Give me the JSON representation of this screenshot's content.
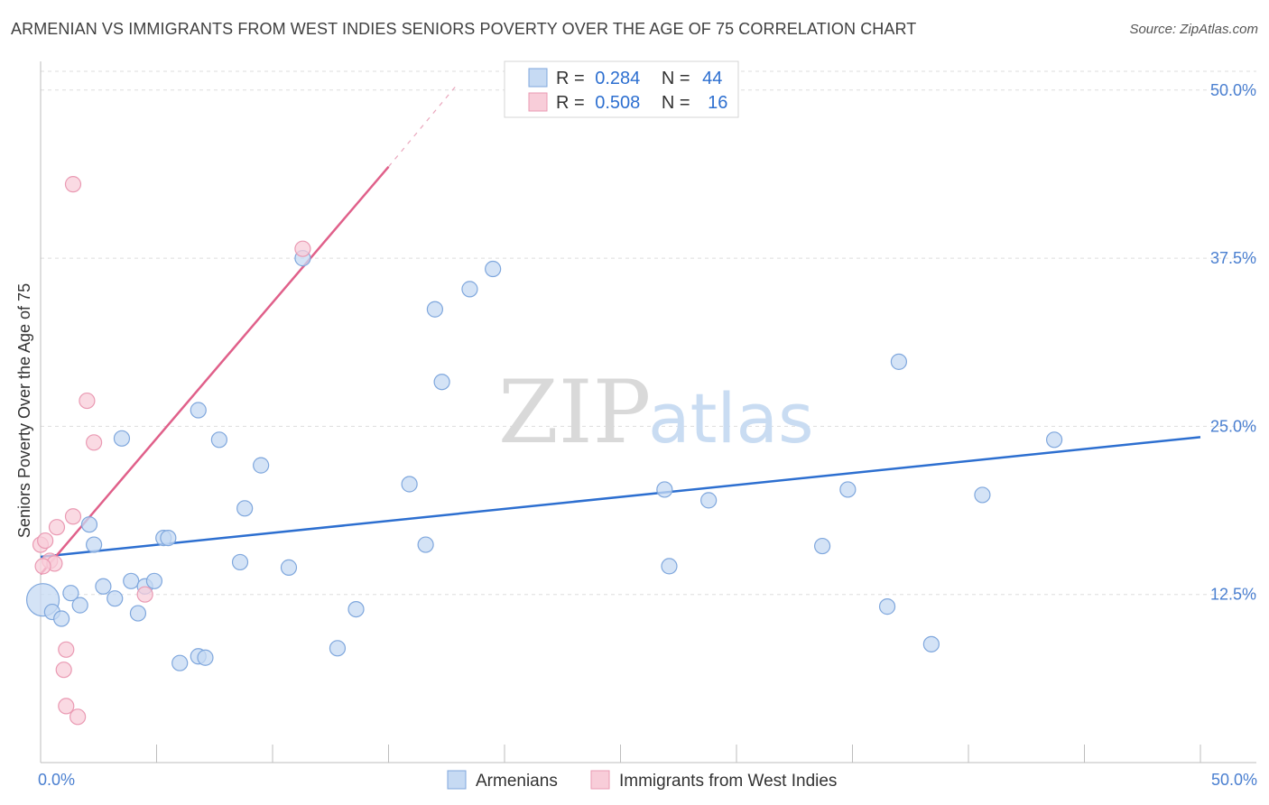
{
  "header": {
    "title": "ARMENIAN VS IMMIGRANTS FROM WEST INDIES SENIORS POVERTY OVER THE AGE OF 75 CORRELATION CHART",
    "source": "Source: ZipAtlas.com"
  },
  "watermark": {
    "zip": "ZIP",
    "atlas": "atlas"
  },
  "colors": {
    "blue_fill": "#c6daf3",
    "blue_stroke": "#7fa7dd",
    "blue_line": "#2d6fd0",
    "pink_fill": "#f8cdd9",
    "pink_stroke": "#ea9ab3",
    "pink_line": "#e0608a",
    "axis_text": "#4a7fd0",
    "grid": "#dddddd"
  },
  "chart_data": {
    "type": "scatter",
    "title": "ARMENIAN VS IMMIGRANTS FROM WEST INDIES SENIORS POVERTY OVER THE AGE OF 75 CORRELATION CHART",
    "xlabel": "",
    "ylabel": "Seniors Poverty Over the Age of 75",
    "xlim": [
      0,
      50
    ],
    "ylim": [
      0,
      52
    ],
    "x_tick_labels": [
      {
        "value": 0,
        "label": "0.0%"
      },
      {
        "value": 50,
        "label": "50.0%"
      }
    ],
    "y_tick_labels": [
      {
        "value": 12.5,
        "label": "12.5%"
      },
      {
        "value": 25.0,
        "label": "25.0%"
      },
      {
        "value": 37.5,
        "label": "37.5%"
      },
      {
        "value": 50.0,
        "label": "50.0%"
      }
    ],
    "legend": [
      {
        "series": "Armenians",
        "r_label": "R =",
        "r_value": "0.284",
        "n_label": "N =",
        "n_value": "44"
      },
      {
        "series": "Immigrants from West Indies",
        "r_label": "R =",
        "r_value": "0.508",
        "n_label": "N =",
        "n_value": "16"
      }
    ],
    "series": [
      {
        "name": "Armenians",
        "color": "blue",
        "points": [
          [
            0.1,
            12.1
          ],
          [
            0.5,
            11.2
          ],
          [
            0.9,
            10.7
          ],
          [
            1.3,
            12.6
          ],
          [
            1.7,
            11.7
          ],
          [
            2.1,
            17.7
          ],
          [
            2.3,
            16.2
          ],
          [
            2.7,
            13.1
          ],
          [
            3.2,
            12.2
          ],
          [
            3.5,
            24.1
          ],
          [
            3.9,
            13.5
          ],
          [
            4.2,
            11.1
          ],
          [
            4.5,
            13.1
          ],
          [
            4.9,
            13.5
          ],
          [
            5.3,
            16.7
          ],
          [
            5.5,
            16.7
          ],
          [
            6.0,
            7.4
          ],
          [
            6.8,
            26.2
          ],
          [
            6.8,
            7.9
          ],
          [
            7.1,
            7.8
          ],
          [
            7.7,
            24.0
          ],
          [
            8.6,
            14.9
          ],
          [
            8.8,
            18.9
          ],
          [
            9.5,
            22.1
          ],
          [
            10.7,
            14.5
          ],
          [
            11.3,
            37.5
          ],
          [
            12.8,
            8.5
          ],
          [
            13.6,
            11.4
          ],
          [
            15.9,
            20.7
          ],
          [
            16.6,
            16.2
          ],
          [
            17.0,
            33.7
          ],
          [
            17.3,
            28.3
          ],
          [
            18.5,
            35.2
          ],
          [
            19.5,
            36.7
          ],
          [
            26.9,
            20.3
          ],
          [
            27.1,
            14.6
          ],
          [
            28.8,
            19.5
          ],
          [
            33.7,
            16.1
          ],
          [
            34.8,
            20.3
          ],
          [
            36.5,
            11.6
          ],
          [
            37.0,
            29.8
          ],
          [
            38.4,
            8.8
          ],
          [
            40.6,
            19.9
          ],
          [
            43.7,
            24.0
          ]
        ],
        "trend": {
          "x0": 0,
          "y0": 15.3,
          "x1": 50,
          "y1": 24.2
        }
      },
      {
        "name": "Immigrants from West Indies",
        "color": "pink",
        "points": [
          [
            0.0,
            16.2
          ],
          [
            0.2,
            16.5
          ],
          [
            0.4,
            15.0
          ],
          [
            0.6,
            14.8
          ],
          [
            0.7,
            17.5
          ],
          [
            1.0,
            6.9
          ],
          [
            1.1,
            8.4
          ],
          [
            1.1,
            4.2
          ],
          [
            1.4,
            18.3
          ],
          [
            1.4,
            43.0
          ],
          [
            1.6,
            3.4
          ],
          [
            2.0,
            26.9
          ],
          [
            2.3,
            23.8
          ],
          [
            4.5,
            12.5
          ],
          [
            11.3,
            38.2
          ],
          [
            0.1,
            14.6
          ]
        ],
        "trend": {
          "x0": 0,
          "y0": 14.0,
          "x1": 15.0,
          "y1": 44.3
        },
        "trend_dashed_extension": {
          "x0": 15.0,
          "y0": 44.3,
          "x1": 18.0,
          "y1": 50.5
        }
      }
    ]
  }
}
